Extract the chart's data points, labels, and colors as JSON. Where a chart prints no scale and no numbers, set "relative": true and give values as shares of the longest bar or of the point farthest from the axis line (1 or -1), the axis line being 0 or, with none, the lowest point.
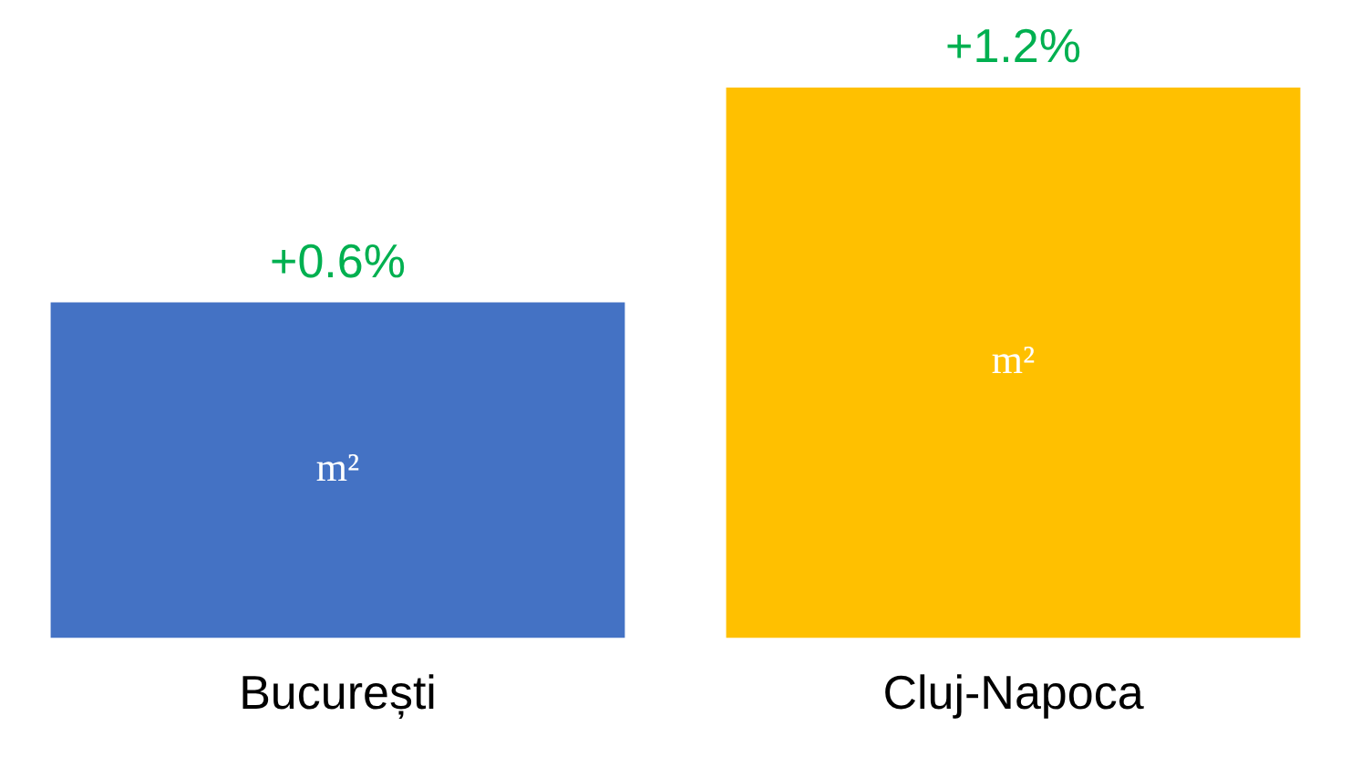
{
  "chart_data": {
    "type": "bar",
    "relative": true,
    "categories": [
      "București",
      "Cluj-Napoca"
    ],
    "values": [
      0.61,
      1
    ],
    "colors": [
      "#4472c4",
      "#ffc000"
    ],
    "annotations": [
      {
        "text": "+0.6%",
        "x": "București",
        "y": 0.61
      },
      {
        "text": "+1.2%",
        "x": "Cluj-Napoca",
        "y": 1
      },
      "m²"
    ],
    "grid": false,
    "legend": false
  }
}
